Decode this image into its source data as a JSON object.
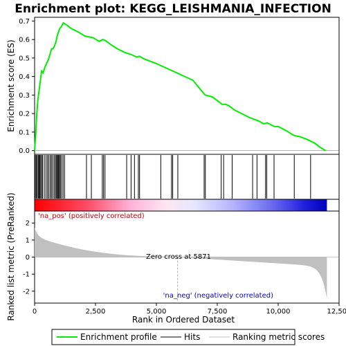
{
  "chart_data": {
    "type": "line",
    "title": "Enrichment plot: KEGG_LEISHMANIA_INFECTION",
    "xlabel": "Rank in Ordered Dataset",
    "ylabel_top": "Enrichment score (ES)",
    "ylabel_bottom": "Ranked list metric (PreRanked)",
    "xlim": [
      0,
      12500
    ],
    "x_ticks": [
      "0",
      "2,500",
      "5,000",
      "7,500",
      "10,000",
      "12,500"
    ],
    "x_tick_values": [
      0,
      2500,
      5000,
      7500,
      10000,
      12500
    ],
    "es_ylim": [
      -0.02,
      0.72
    ],
    "es_ticks": [
      "0.0",
      "0.1",
      "0.2",
      "0.3",
      "0.4",
      "0.5",
      "0.6",
      "0.7"
    ],
    "es_tick_values": [
      0,
      0.1,
      0.2,
      0.3,
      0.4,
      0.5,
      0.6,
      0.7
    ],
    "metric_ylim": [
      -2.7,
      2.7
    ],
    "metric_ticks": [
      "2",
      "1",
      "0",
      "-1",
      "-2"
    ],
    "metric_tick_values": [
      2,
      1,
      0,
      -1,
      -2
    ],
    "n_genes": 12000,
    "es_profile": {
      "x": [
        0,
        50,
        90,
        140,
        190,
        240,
        290,
        350,
        420,
        490,
        560,
        630,
        700,
        760,
        830,
        880,
        930,
        980,
        1030,
        1100,
        1180,
        1300,
        1500,
        1800,
        2050,
        2200,
        2400,
        2650,
        2800,
        2900,
        3100,
        3400,
        3700,
        3950,
        4200,
        4300,
        4500,
        5000,
        5500,
        6000,
        6500,
        7000,
        7300,
        7700,
        7850,
        8000,
        8200,
        8500,
        8800,
        9000,
        9200,
        9400,
        9550,
        9700,
        9850,
        10000,
        10300,
        10600,
        10700,
        10900,
        11200,
        11350,
        11500,
        11700,
        11950
      ],
      "y": [
        0.0,
        0.1,
        0.2,
        0.28,
        0.33,
        0.38,
        0.43,
        0.42,
        0.45,
        0.47,
        0.49,
        0.52,
        0.55,
        0.55,
        0.57,
        0.59,
        0.62,
        0.64,
        0.66,
        0.67,
        0.69,
        0.68,
        0.66,
        0.64,
        0.62,
        0.615,
        0.61,
        0.59,
        0.6,
        0.595,
        0.575,
        0.55,
        0.53,
        0.52,
        0.505,
        0.51,
        0.495,
        0.47,
        0.44,
        0.41,
        0.38,
        0.3,
        0.29,
        0.25,
        0.25,
        0.24,
        0.22,
        0.2,
        0.18,
        0.17,
        0.16,
        0.145,
        0.15,
        0.14,
        0.13,
        0.13,
        0.11,
        0.085,
        0.08,
        0.075,
        0.06,
        0.05,
        0.04,
        0.02,
        0.0
      ]
    },
    "hits": [
      30,
      70,
      110,
      150,
      180,
      210,
      250,
      290,
      330,
      400,
      470,
      530,
      580,
      640,
      690,
      740,
      800,
      850,
      890,
      930,
      960,
      990,
      1020,
      1060,
      1110,
      1170,
      1230,
      2130,
      2330,
      2780,
      2830,
      2890,
      3780,
      3960,
      4100,
      4260,
      4310,
      5180,
      5620,
      5670,
      5880,
      6960,
      7010,
      7660,
      7760,
      8110,
      8950,
      9130,
      9480,
      9530,
      9830,
      10660,
      11330
    ],
    "positive_label": "'na_pos' (positively correlated)",
    "negative_label": "'na_neg' (negatively correlated)",
    "zero_cross_label": "Zero cross at 5871",
    "zero_cross": 5871,
    "legend": [
      "Enrichment profile",
      "Hits",
      "Ranking metric scores"
    ],
    "colors": {
      "profile": "#00ee00",
      "hits": "#000000",
      "metric_fill": "#c0c0c0",
      "positive_text": "#cc0000",
      "negative_text": "#0000cc",
      "zero_line": "#aaaaaa"
    }
  }
}
